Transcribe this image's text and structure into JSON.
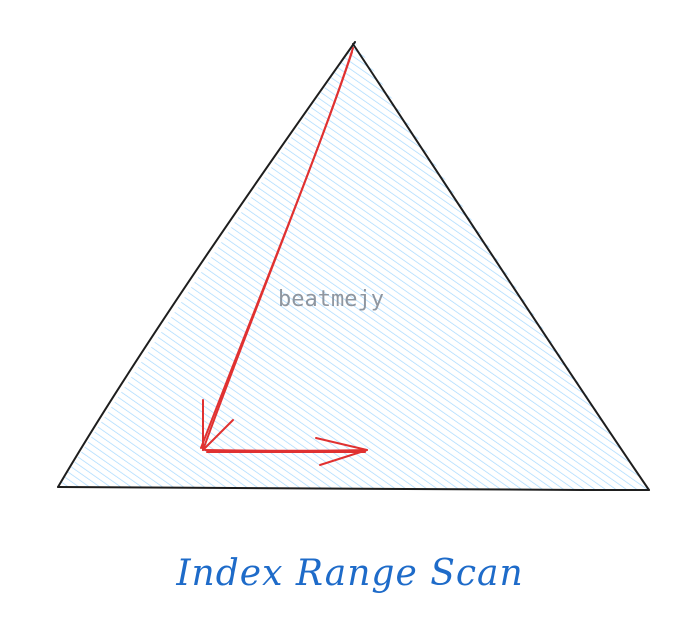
{
  "diagram": {
    "caption": "Index Range Scan",
    "watermark": "beatmejy",
    "colors": {
      "fill": "#a5d8ff",
      "outline": "#1e1e1e",
      "arrow": "#e03131",
      "caption": "#1e6bc9",
      "watermark": "#7d8590"
    }
  }
}
